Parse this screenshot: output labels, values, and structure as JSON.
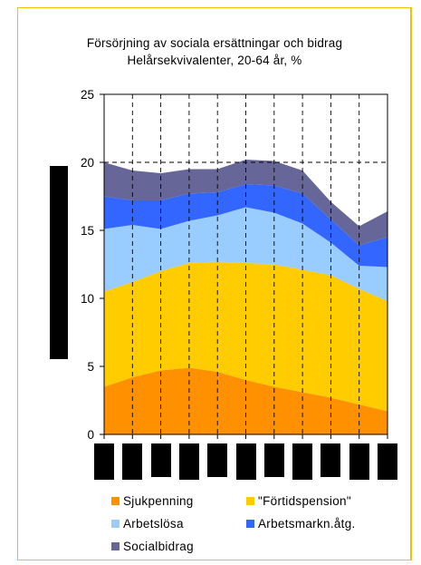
{
  "title": "Försörjning av sociala ersättningar och bidrag",
  "subtitle": "Helårsekvivalenter, 20-64 år, %",
  "colors": {
    "frame": "#f2c200",
    "Sjukpenning": "#ff9000",
    "Fortidspension": "#ffcc00",
    "Arbetslosa": "#99ccff",
    "Arbetsmarknatg": "#3366ff",
    "Socialbidrag": "#666699"
  },
  "chart_data": {
    "type": "area",
    "stacked": true,
    "x": [
      "",
      "",
      "",
      "",
      "",
      "",
      "",
      "",
      "",
      "",
      ""
    ],
    "ylim": [
      0,
      25
    ],
    "yticks": [
      "0",
      "5",
      "10",
      "15",
      "20",
      "25"
    ],
    "grid": "dashed vertical lines and dashed line at 20",
    "ylabel": "",
    "xlabel": "",
    "series": [
      {
        "name": "Sjukpenning",
        "values": [
          3.5,
          4.2,
          4.7,
          4.9,
          4.6,
          4.0,
          3.5,
          3.1,
          2.7,
          2.2,
          1.7
        ]
      },
      {
        "name": "\"Förtidspension\"",
        "values": [
          7.0,
          7.0,
          7.3,
          7.7,
          8.1,
          8.6,
          9.0,
          9.0,
          9.0,
          8.5,
          8.1
        ]
      },
      {
        "name": "Arbetslösa",
        "values": [
          4.6,
          4.2,
          3.1,
          3.1,
          3.4,
          4.1,
          3.8,
          3.4,
          2.4,
          1.7,
          2.5
        ]
      },
      {
        "name": "Arbetsmarkn.åtg.",
        "values": [
          2.4,
          1.8,
          2.1,
          2.0,
          1.7,
          1.7,
          2.0,
          2.2,
          1.7,
          1.5,
          2.2
        ]
      },
      {
        "name": "Socialbidrag",
        "values": [
          2.5,
          2.2,
          2.0,
          1.8,
          1.7,
          1.8,
          1.8,
          1.7,
          1.3,
          1.4,
          1.9
        ]
      }
    ],
    "legend": "bottom"
  },
  "legend_items": [
    {
      "label": "Sjukpenning",
      "color_key": "Sjukpenning"
    },
    {
      "label": "\"Förtidspension\"",
      "color_key": "Fortidspension"
    },
    {
      "label": "Arbetslösa",
      "color_key": "Arbetslosa"
    },
    {
      "label": "Arbetsmarkn.åtg.",
      "color_key": "Arbetsmarknatg"
    },
    {
      "label": "Socialbidrag",
      "color_key": "Socialbidrag"
    }
  ]
}
